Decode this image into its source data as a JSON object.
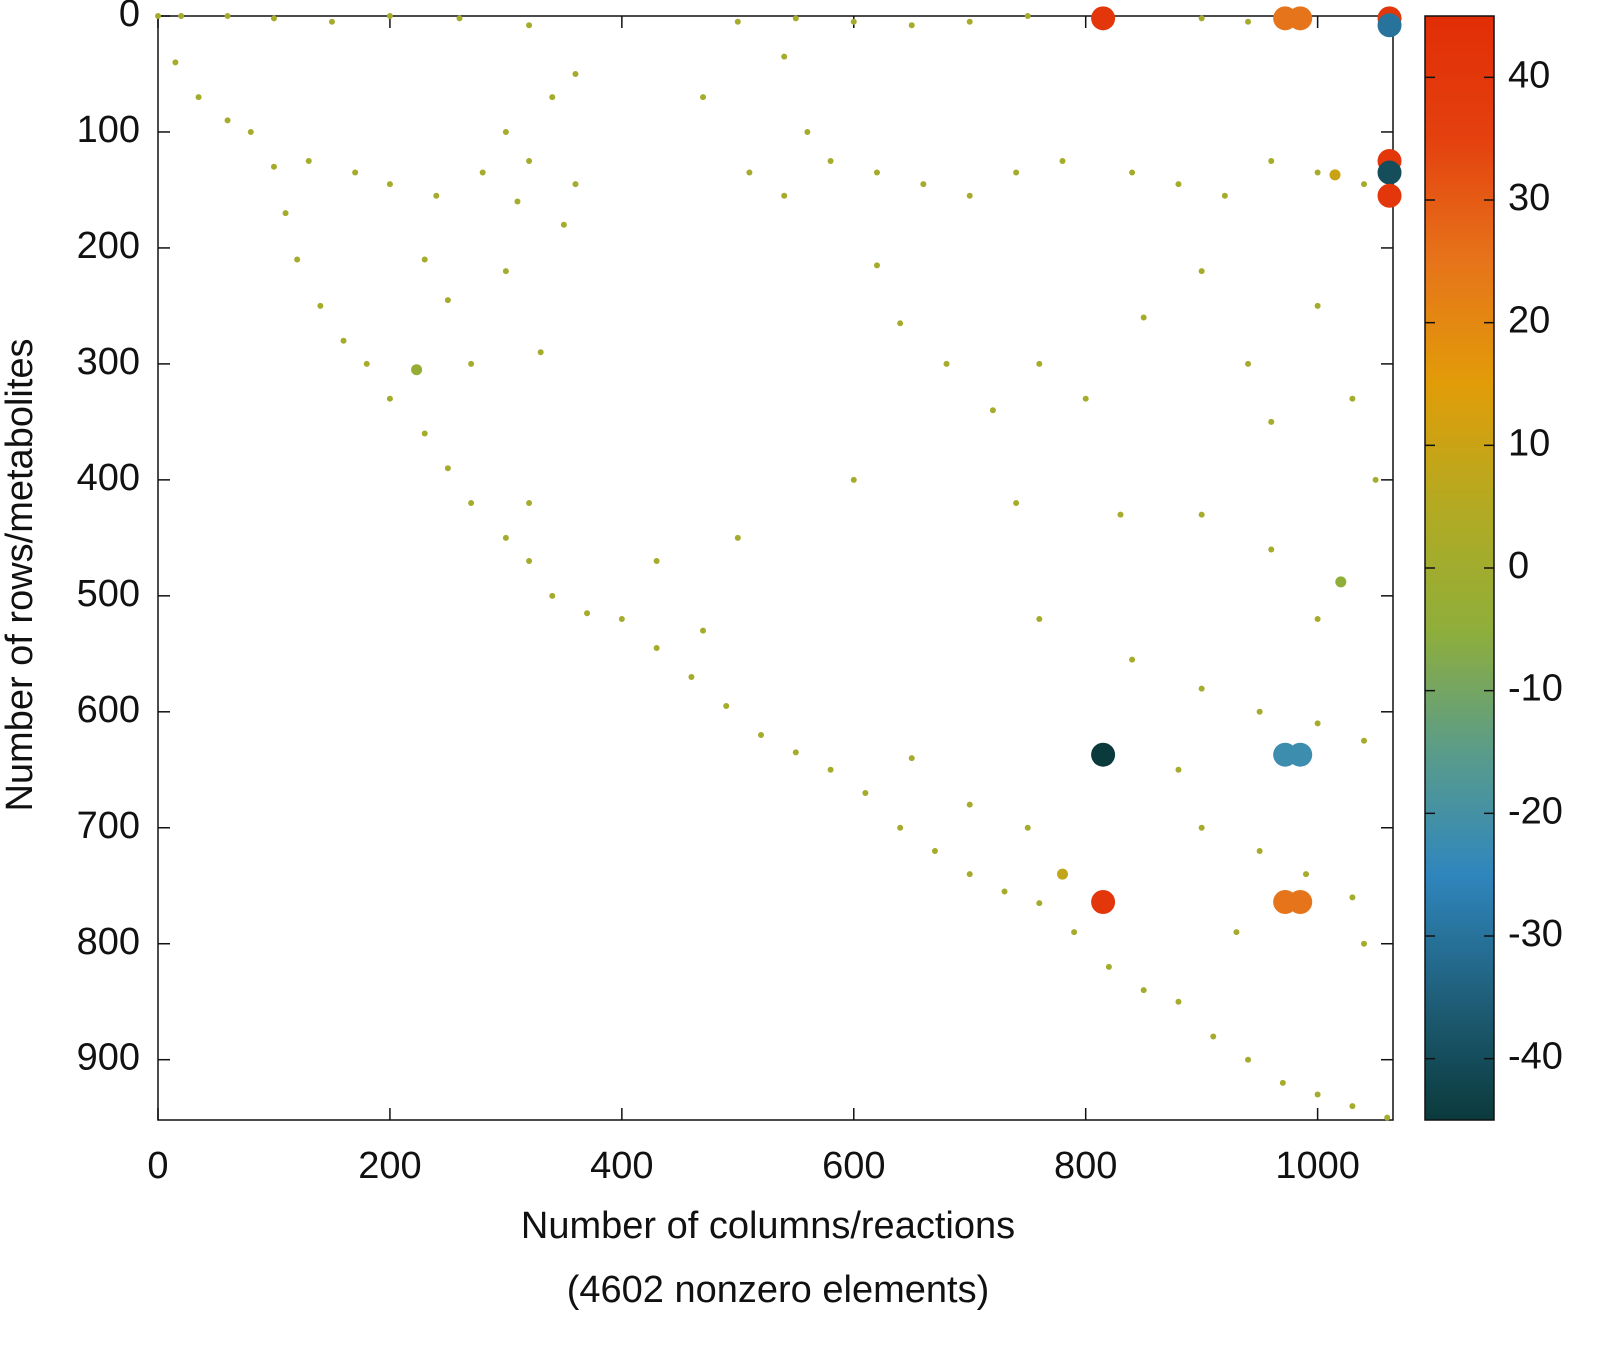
{
  "chart_data": {
    "type": "scatter",
    "xlabel": [
      "Number of columns/reactions",
      "(4602 nonzero elements)"
    ],
    "ylabel": "Number of rows/metabolites",
    "xlim": [
      0,
      1065
    ],
    "ylim": [
      952,
      0
    ],
    "y_reversed": true,
    "xticks": [
      0,
      200,
      400,
      600,
      800,
      1000
    ],
    "yticks": [
      0,
      100,
      200,
      300,
      400,
      500,
      600,
      700,
      800,
      900
    ],
    "clim": [
      -45,
      45
    ],
    "cticks": [
      -40,
      -30,
      -20,
      -10,
      0,
      10,
      20,
      30,
      40
    ],
    "colormap": [
      "#0b3a3c",
      "#1f5f7a",
      "#2f86bd",
      "#5a9c8a",
      "#8fae3a",
      "#b3aa22",
      "#e19c08",
      "#e6741a",
      "#e4410f",
      "#e12d06"
    ],
    "x": [
      0,
      15,
      35,
      60,
      80,
      100,
      110,
      120,
      140,
      160,
      180,
      200,
      230,
      250,
      270,
      300,
      320,
      340,
      370,
      400,
      430,
      460,
      490,
      520,
      550,
      580,
      610,
      640,
      670,
      700,
      730,
      760,
      790,
      820,
      850,
      880,
      910,
      940,
      970,
      1000,
      1030,
      1060,
      20,
      60,
      100,
      150,
      200,
      260,
      320,
      500,
      550,
      600,
      650,
      700,
      750,
      900,
      940,
      130,
      170,
      200,
      240,
      280,
      320,
      360,
      510,
      540,
      580,
      620,
      660,
      700,
      740,
      780,
      840,
      880,
      920,
      960,
      1000,
      1040,
      230,
      250,
      300,
      330,
      350,
      310,
      270,
      620,
      640,
      680,
      720,
      760,
      800,
      850,
      900,
      940,
      960,
      1000,
      1030,
      1050,
      740,
      830,
      900,
      960,
      1000,
      760,
      840,
      900,
      950,
      1000,
      1040,
      650,
      700,
      750,
      900,
      950,
      990,
      1030,
      1040,
      930,
      880,
      300,
      340,
      470,
      540,
      360,
      560,
      320,
      430,
      470,
      600,
      500,
      815,
      972,
      985,
      1062,
      1062,
      1062,
      1062,
      1062,
      815,
      972,
      985,
      815,
      972,
      985,
      1020,
      223,
      780,
      1015
    ],
    "y": [
      0,
      40,
      70,
      90,
      100,
      130,
      170,
      210,
      250,
      280,
      300,
      330,
      360,
      390,
      420,
      450,
      470,
      500,
      515,
      520,
      545,
      570,
      595,
      620,
      635,
      650,
      670,
      700,
      720,
      740,
      755,
      765,
      790,
      820,
      840,
      850,
      880,
      900,
      920,
      930,
      940,
      950,
      0,
      0,
      2,
      5,
      0,
      2,
      8,
      5,
      2,
      5,
      8,
      5,
      0,
      2,
      5,
      125,
      135,
      145,
      155,
      135,
      125,
      145,
      135,
      155,
      125,
      135,
      145,
      155,
      135,
      125,
      135,
      145,
      155,
      125,
      135,
      145,
      210,
      245,
      220,
      290,
      180,
      160,
      300,
      215,
      265,
      300,
      340,
      300,
      330,
      260,
      220,
      300,
      350,
      250,
      330,
      400,
      420,
      430,
      430,
      460,
      520,
      520,
      555,
      580,
      600,
      610,
      625,
      640,
      680,
      700,
      700,
      720,
      740,
      760,
      800,
      790,
      650,
      100,
      70,
      70,
      35,
      50,
      100,
      420,
      470,
      530,
      400,
      450,
      2,
      2,
      2,
      2,
      8,
      125,
      135,
      155,
      637,
      637,
      637,
      764,
      764,
      764,
      488,
      305,
      740,
      137
    ],
    "values": [
      1,
      1,
      1,
      1,
      1,
      1,
      1,
      1,
      1,
      1,
      1,
      1,
      1,
      1,
      1,
      1,
      1,
      1,
      1,
      1,
      1,
      1,
      1,
      1,
      1,
      1,
      1,
      1,
      1,
      1,
      1,
      1,
      1,
      1,
      1,
      1,
      1,
      1,
      1,
      1,
      1,
      1,
      1,
      1,
      1,
      1,
      1,
      1,
      1,
      1,
      1,
      1,
      1,
      1,
      1,
      1,
      1,
      1,
      1,
      1,
      1,
      1,
      1,
      1,
      1,
      1,
      1,
      1,
      1,
      1,
      1,
      1,
      1,
      1,
      1,
      1,
      1,
      1,
      1,
      1,
      1,
      1,
      1,
      1,
      1,
      1,
      1,
      1,
      1,
      1,
      1,
      1,
      1,
      1,
      1,
      1,
      1,
      1,
      1,
      1,
      1,
      1,
      1,
      1,
      1,
      1,
      1,
      1,
      1,
      1,
      1,
      1,
      1,
      1,
      1,
      1,
      1,
      1,
      1,
      1,
      1,
      1,
      1,
      1,
      1,
      1,
      1,
      1,
      1,
      1,
      40,
      25,
      25,
      40,
      -30,
      40,
      -40,
      40,
      -45,
      -22,
      -22,
      40,
      25,
      25,
      -5,
      -3,
      8,
      10
    ]
  }
}
